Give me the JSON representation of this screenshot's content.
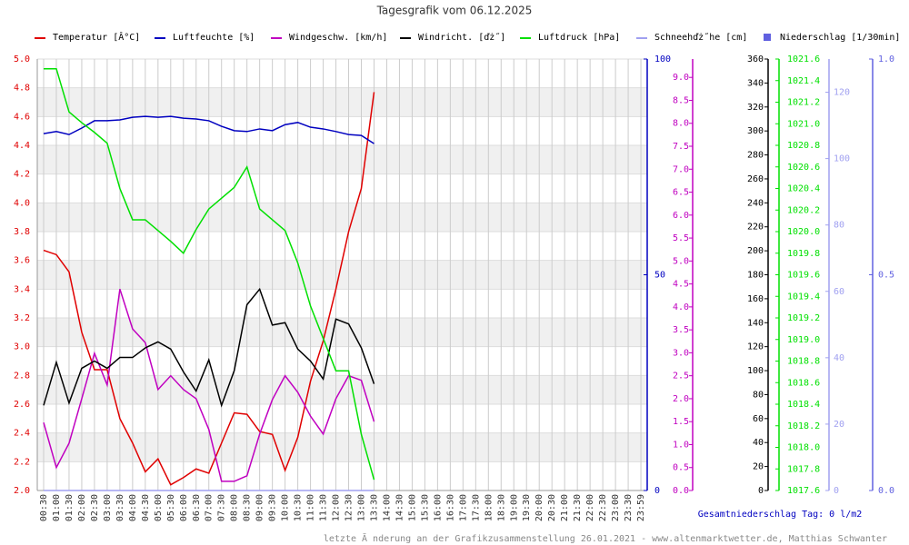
{
  "chart_data": {
    "type": "line",
    "title": "Tagesgrafik vom 06.12.2025",
    "categories": [
      "00:30",
      "01:00",
      "01:30",
      "02:00",
      "02:30",
      "03:00",
      "03:30",
      "04:00",
      "04:30",
      "05:00",
      "05:30",
      "06:00",
      "06:30",
      "07:00",
      "07:30",
      "08:00",
      "08:30",
      "09:00",
      "09:30",
      "10:00",
      "10:30",
      "11:00",
      "11:30",
      "12:00",
      "12:30",
      "13:00",
      "13:30",
      "14:00",
      "14:30",
      "15:00",
      "15:30",
      "16:00",
      "16:30",
      "17:00",
      "17:30",
      "18:00",
      "18:30",
      "19:00",
      "19:30",
      "20:00",
      "20:30",
      "21:00",
      "21:30",
      "22:00",
      "22:30",
      "23:00",
      "23:30",
      "23:59"
    ],
    "ylim": [
      2.0,
      5.0
    ],
    "yticks": [
      {
        "value": 2.0,
        "label": "2.0"
      },
      {
        "value": 2.2,
        "label": "2.2"
      },
      {
        "value": 2.4,
        "label": "2.4"
      },
      {
        "value": 2.6,
        "label": "2.6"
      },
      {
        "value": 2.8,
        "label": "2.8"
      },
      {
        "value": 3.0,
        "label": "3.0"
      },
      {
        "value": 3.2,
        "label": "3.2"
      },
      {
        "value": 3.4,
        "label": "3.4"
      },
      {
        "value": 3.6,
        "label": "3.6"
      },
      {
        "value": 3.8,
        "label": "3.8"
      },
      {
        "value": 4.0,
        "label": "4.0"
      },
      {
        "value": 4.2,
        "label": "4.2"
      },
      {
        "value": 4.4,
        "label": "4.4"
      },
      {
        "value": 4.6,
        "label": "4.6"
      },
      {
        "value": 4.8,
        "label": "4.8"
      },
      {
        "value": 5.0,
        "label": "5.0"
      }
    ],
    "y2lim": [
      0,
      100
    ],
    "y2ticks": [
      0,
      50,
      100
    ],
    "y3lim": [
      0,
      9.4
    ],
    "y3ticks": [
      {
        "value": 0,
        "label": "0.0"
      },
      {
        "value": 0.5,
        "label": "0.5"
      },
      {
        "value": 1,
        "label": "1.0"
      },
      {
        "value": 1.5,
        "label": "1.5"
      },
      {
        "value": 2,
        "label": "2.0"
      },
      {
        "value": 2.5,
        "label": "2.5"
      },
      {
        "value": 3,
        "label": "3.0"
      },
      {
        "value": 3.5,
        "label": "3.5"
      },
      {
        "value": 4,
        "label": "4.0"
      },
      {
        "value": 4.5,
        "label": "4.5"
      },
      {
        "value": 5,
        "label": "5.0"
      },
      {
        "value": 5.5,
        "label": "5.5"
      },
      {
        "value": 6,
        "label": "6.0"
      },
      {
        "value": 6.5,
        "label": "6.5"
      },
      {
        "value": 7,
        "label": "7.0"
      },
      {
        "value": 7.5,
        "label": "7.5"
      },
      {
        "value": 8,
        "label": "8.0"
      },
      {
        "value": 8.5,
        "label": "8.5"
      },
      {
        "value": 9,
        "label": "9.0"
      }
    ],
    "y4lim": [
      0,
      360
    ],
    "y4ticks": [
      0,
      20,
      40,
      60,
      80,
      100,
      120,
      140,
      160,
      180,
      200,
      220,
      240,
      260,
      280,
      300,
      320,
      340,
      360
    ],
    "y5lim": [
      1017.6,
      1021.6
    ],
    "y5ticks": [
      {
        "value": 1017.6,
        "label": "1017.6"
      },
      {
        "value": 1017.8,
        "label": "1017.8"
      },
      {
        "value": 1018.0,
        "label": "1018.0"
      },
      {
        "value": 1018.2,
        "label": "1018.2"
      },
      {
        "value": 1018.4,
        "label": "1018.4"
      },
      {
        "value": 1018.6,
        "label": "1018.6"
      },
      {
        "value": 1018.8,
        "label": "1018.8"
      },
      {
        "value": 1019.0,
        "label": "1019.0"
      },
      {
        "value": 1019.2,
        "label": "1019.2"
      },
      {
        "value": 1019.4,
        "label": "1019.4"
      },
      {
        "value": 1019.6,
        "label": "1019.6"
      },
      {
        "value": 1019.8,
        "label": "1019.8"
      },
      {
        "value": 1020.0,
        "label": "1020.0"
      },
      {
        "value": 1020.2,
        "label": "1020.2"
      },
      {
        "value": 1020.4,
        "label": "1020.4"
      },
      {
        "value": 1020.6,
        "label": "1020.6"
      },
      {
        "value": 1020.8,
        "label": "1020.8"
      },
      {
        "value": 1021.0,
        "label": "1021.0"
      },
      {
        "value": 1021.2,
        "label": "1021.2"
      },
      {
        "value": 1021.4,
        "label": "1021.4"
      },
      {
        "value": 1021.6,
        "label": "1021.6"
      }
    ],
    "y6lim": [
      0,
      130
    ],
    "y6ticks": [
      0,
      20,
      40,
      60,
      80,
      100,
      120
    ],
    "y7lim": [
      0,
      1
    ],
    "y7ticks": [
      {
        "value": 0,
        "label": "0.0"
      },
      {
        "value": 0.5,
        "label": "0.5"
      },
      {
        "value": 1,
        "label": "1.0"
      }
    ],
    "grid": true,
    "series": [
      {
        "name": "Temperatur [Â°C]",
        "color": "#e00000",
        "axis": "y",
        "values": [
          3.67,
          3.64,
          3.52,
          3.1,
          2.84,
          2.84,
          2.5,
          2.33,
          2.13,
          2.22,
          2.04,
          2.09,
          2.15,
          2.12,
          2.33,
          2.54,
          2.53,
          2.41,
          2.39,
          2.14,
          2.37,
          2.76,
          3.04,
          3.4,
          3.8,
          4.1,
          4.77,
          null,
          null,
          null,
          null,
          null,
          null,
          null,
          null,
          null,
          null,
          null,
          null,
          null,
          null,
          null,
          null,
          null,
          null,
          null,
          null,
          null
        ]
      },
      {
        "name": "Luftfeuchte [%]",
        "color": "#0000c0",
        "axis": "y2",
        "values": [
          82.7,
          83.2,
          82.5,
          84,
          85.7,
          85.7,
          85.9,
          86.5,
          86.7,
          86.5,
          86.7,
          86.3,
          86.1,
          85.7,
          84.4,
          83.4,
          83.2,
          83.8,
          83.4,
          84.8,
          85.3,
          84.2,
          83.8,
          83.2,
          82.5,
          82.3,
          80.4,
          null,
          null,
          null,
          null,
          null,
          null,
          null,
          null,
          null,
          null,
          null,
          null,
          null,
          null,
          null,
          null,
          null,
          null,
          null,
          null,
          null
        ]
      },
      {
        "name": "Windgeschw. [km/h]",
        "color": "#c000c0",
        "axis": "y3",
        "values": [
          1.48,
          0.5,
          1.03,
          2.0,
          2.99,
          2.3,
          4.39,
          3.52,
          3.22,
          2.2,
          2.5,
          2.2,
          2.0,
          1.33,
          0.2,
          0.2,
          0.32,
          1.23,
          1.98,
          2.5,
          2.14,
          1.62,
          1.23,
          2.0,
          2.5,
          2.4,
          1.5,
          null,
          null,
          null,
          null,
          null,
          null,
          null,
          null,
          null,
          null,
          null,
          null,
          null,
          null,
          null,
          null,
          null,
          null,
          null,
          null,
          null
        ]
      },
      {
        "name": "Windricht. [ďż˝]",
        "color": "#000000",
        "axis": "y4",
        "values": [
          71,
          107,
          73,
          102,
          108,
          102,
          111,
          111,
          119,
          124,
          118,
          99,
          83,
          109,
          71,
          100,
          155,
          168,
          138,
          140,
          118,
          108,
          93,
          143,
          139,
          119,
          89,
          null,
          null,
          null,
          null,
          null,
          null,
          null,
          null,
          null,
          null,
          null,
          null,
          null,
          null,
          null,
          null,
          null,
          null,
          null,
          null,
          null
        ]
      },
      {
        "name": "Luftdruck [hPa]",
        "color": "#00e000",
        "axis": "y5",
        "values": [
          1021.51,
          1021.51,
          1021.11,
          1021.01,
          1020.92,
          1020.82,
          1020.4,
          1020.11,
          1020.11,
          1020.01,
          1019.91,
          1019.8,
          1020.02,
          1020.21,
          1020.31,
          1020.41,
          1020.6,
          1020.21,
          1020.11,
          1020.01,
          1019.71,
          1019.31,
          1019.01,
          1018.71,
          1018.71,
          1018.12,
          1017.7,
          null,
          null,
          null,
          null,
          null,
          null,
          null,
          null,
          null,
          null,
          null,
          null,
          null,
          null,
          null,
          null,
          null,
          null,
          null,
          null,
          null
        ]
      },
      {
        "name": "Schneehďż˝he [cm]",
        "color": "#a0a0f0",
        "axis": "y6",
        "values": [
          0,
          0,
          0,
          0,
          0,
          0,
          0,
          0,
          0,
          0,
          0,
          0,
          0,
          0,
          0,
          0,
          0,
          0,
          0,
          0,
          0,
          0,
          0,
          0,
          0,
          0,
          0,
          null,
          null,
          null,
          null,
          null,
          null,
          null,
          null,
          null,
          null,
          null,
          null,
          null,
          null,
          null,
          null,
          null,
          null,
          null,
          null,
          null
        ]
      },
      {
        "name": "Niederschlag [1/30min]",
        "color": "#6060e0",
        "axis": "y7",
        "kind": "bar",
        "values": [
          0,
          0,
          0,
          0,
          0,
          0,
          0,
          0,
          0,
          0,
          0,
          0,
          0,
          0,
          0,
          0,
          0,
          0,
          0,
          0,
          0,
          0,
          0,
          0,
          0,
          0,
          0,
          null,
          null,
          null,
          null,
          null,
          null,
          null,
          null,
          null,
          null,
          null,
          null,
          null,
          null,
          null,
          null,
          null,
          null,
          null,
          null,
          null
        ]
      }
    ],
    "annotations": [
      "Gesamtniederschlag Tag: 0 l/m2",
      "letzte Ă nderung an der Grafikzusammenstellung 26.01.2021 - www.altenmarktwetter.de, Matthias Schwanter"
    ]
  }
}
